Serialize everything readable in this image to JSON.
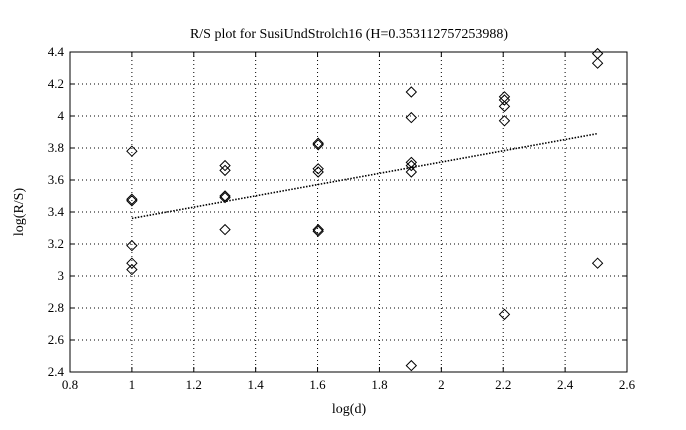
{
  "chart_data": {
    "type": "scatter",
    "title": "R/S plot for SusiUndStrolch16 (H=0.353112757253988)",
    "xlabel": "log(d)",
    "ylabel": "log(R/S)",
    "xlim": [
      0.8,
      2.6
    ],
    "ylim": [
      2.4,
      4.4
    ],
    "xticks": [
      0.8,
      1,
      1.2,
      1.4,
      1.6,
      1.8,
      2,
      2.2,
      2.4,
      2.6
    ],
    "yticks": [
      2.4,
      2.6,
      2.8,
      3,
      3.2,
      3.4,
      3.6,
      3.8,
      4,
      4.2,
      4.4
    ],
    "xtick_labels": [
      "0.8",
      "1",
      "1.2",
      "1.4",
      "1.6",
      "1.8",
      "2",
      "2.2",
      "2.4",
      "2.6"
    ],
    "ytick_labels": [
      "2.4",
      "2.6",
      "2.8",
      "3",
      "3.2",
      "3.4",
      "3.6",
      "3.8",
      "4",
      "4.2",
      "4.4"
    ],
    "grid": true,
    "marker": "diamond",
    "points": [
      {
        "x": 1.0,
        "y": 3.78
      },
      {
        "x": 1.0,
        "y": 3.48
      },
      {
        "x": 1.0,
        "y": 3.47
      },
      {
        "x": 1.0,
        "y": 3.19
      },
      {
        "x": 1.0,
        "y": 3.08
      },
      {
        "x": 1.0,
        "y": 3.04
      },
      {
        "x": 1.301,
        "y": 3.69
      },
      {
        "x": 1.301,
        "y": 3.66
      },
      {
        "x": 1.301,
        "y": 3.5
      },
      {
        "x": 1.301,
        "y": 3.49
      },
      {
        "x": 1.301,
        "y": 3.29
      },
      {
        "x": 1.602,
        "y": 3.83
      },
      {
        "x": 1.602,
        "y": 3.82
      },
      {
        "x": 1.602,
        "y": 3.67
      },
      {
        "x": 1.602,
        "y": 3.65
      },
      {
        "x": 1.602,
        "y": 3.29
      },
      {
        "x": 1.602,
        "y": 3.28
      },
      {
        "x": 1.903,
        "y": 4.15
      },
      {
        "x": 1.903,
        "y": 3.99
      },
      {
        "x": 1.903,
        "y": 3.71
      },
      {
        "x": 1.903,
        "y": 3.69
      },
      {
        "x": 1.903,
        "y": 3.65
      },
      {
        "x": 1.903,
        "y": 2.44
      },
      {
        "x": 2.204,
        "y": 4.12
      },
      {
        "x": 2.204,
        "y": 4.1
      },
      {
        "x": 2.204,
        "y": 4.06
      },
      {
        "x": 2.204,
        "y": 3.97
      },
      {
        "x": 2.204,
        "y": 2.76
      },
      {
        "x": 2.505,
        "y": 4.39
      },
      {
        "x": 2.505,
        "y": 4.33
      },
      {
        "x": 2.505,
        "y": 3.08
      }
    ],
    "fit_line": {
      "x": [
        1.0,
        2.505
      ],
      "y": [
        3.36,
        3.89
      ],
      "style": "dotted"
    }
  }
}
